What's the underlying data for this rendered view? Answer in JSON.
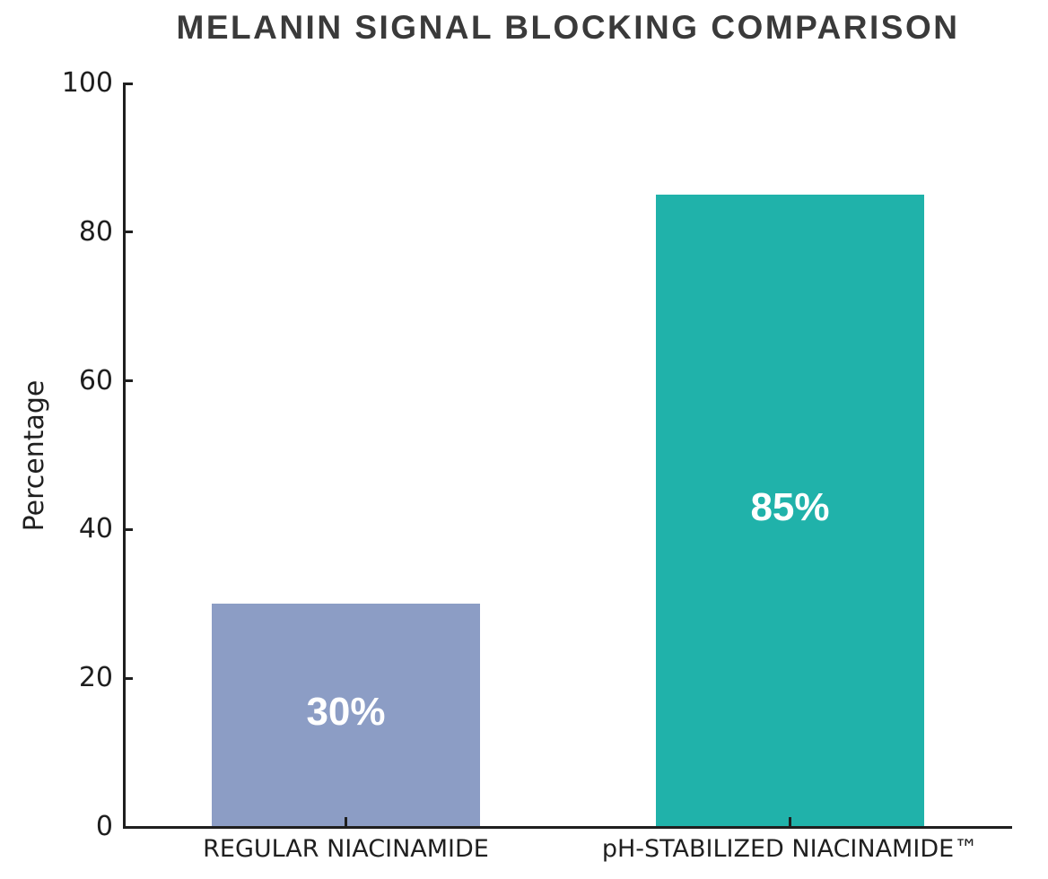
{
  "figure": {
    "title": "MELANIN SIGNAL BLOCKING COMPARISON"
  },
  "chart_data": {
    "type": "bar",
    "title": "MELANIN SIGNAL BLOCKING COMPARISON",
    "categories": [
      "REGULAR NIACINAMIDE",
      "pH-STABILIZED NIACINAMIDE™"
    ],
    "values": [
      30,
      85
    ],
    "bar_labels": [
      "30%",
      "85%"
    ],
    "bar_colors": [
      "#8C9DC5",
      "#20B2AA"
    ],
    "bar_label_color": "#FFFFFF",
    "xlabel": "",
    "ylabel": "Percentage",
    "ylim": [
      0,
      100
    ],
    "yticks": [
      0,
      20,
      40,
      60,
      80,
      100
    ],
    "grid": false,
    "legend_position": "none",
    "bar_width_fraction": 0.606,
    "axis_color": "#1F1F1F",
    "title_color": "#3A3A3A",
    "background": "#FFFFFF"
  }
}
